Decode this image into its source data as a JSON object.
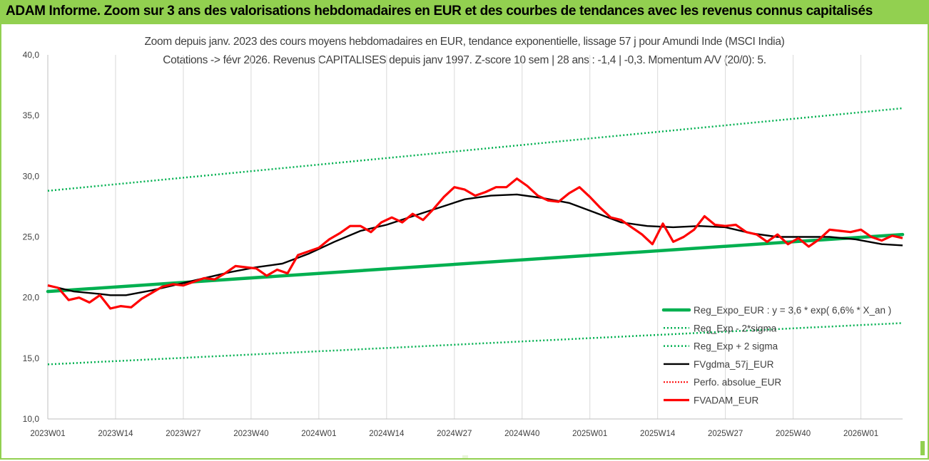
{
  "header": {
    "title": "ADAM Informe. Zoom sur 3 ans des valorisations hebdomadaires en EUR et des courbes de tendances avec les revenus connus capitalisés"
  },
  "colors": {
    "header_bg": "#92d050",
    "trend": "#00b050",
    "band": "#00b050",
    "smoothed": "#000000",
    "perf": "#ff0000",
    "price": "#ff0000"
  },
  "chart_data": {
    "type": "line",
    "title": "Zoom depuis janv. 2023 des cours moyens hebdomadaires en EUR, tendance exponentielle, lissage 57 j pour Amundi Inde (MSCI India)",
    "subtitle": "Cotations -> févr 2026. Revenus CAPITALISES depuis janv 1997. Z-score 10 sem | 28 ans : -1,4 | -0,3. Momentum A/V (20/0): 5.",
    "xlabel": "",
    "ylabel": "",
    "ylim": [
      10,
      40
    ],
    "yticks": [
      "10,0",
      "15,0",
      "20,0",
      "25,0",
      "30,0",
      "35,0",
      "40,0"
    ],
    "x_range": [
      0,
      164
    ],
    "xticks": [
      {
        "x": 0,
        "label": "2023W01"
      },
      {
        "x": 13,
        "label": "2023W14"
      },
      {
        "x": 26,
        "label": "2023W27"
      },
      {
        "x": 39,
        "label": "2023W40"
      },
      {
        "x": 52,
        "label": "2024W01"
      },
      {
        "x": 65,
        "label": "2024W14"
      },
      {
        "x": 78,
        "label": "2024W27"
      },
      {
        "x": 91,
        "label": "2024W40"
      },
      {
        "x": 104,
        "label": "2025W01"
      },
      {
        "x": 117,
        "label": "2025W14"
      },
      {
        "x": 130,
        "label": "2025W27"
      },
      {
        "x": 143,
        "label": "2025W40"
      },
      {
        "x": 156,
        "label": "2026W01"
      }
    ],
    "grid": "vertical",
    "legend_position": "bottom-right",
    "series": [
      {
        "name": "Reg_Expo_EUR : y = 3,6 * exp( 6,6% *  X_an )",
        "style": "solid-thick-green",
        "x": [
          0,
          164
        ],
        "values": [
          20.5,
          25.2
        ]
      },
      {
        "name": "Reg_Exp - 2*sigma",
        "style": "dotted-green",
        "x": [
          0,
          164
        ],
        "values": [
          14.5,
          17.9
        ]
      },
      {
        "name": "Reg_Exp + 2 sigma",
        "style": "dotted-green",
        "x": [
          0,
          164
        ],
        "values": [
          28.8,
          35.6
        ]
      },
      {
        "name": "FVgdma_57j_EUR",
        "style": "solid-black",
        "x": [
          0,
          5,
          10,
          12,
          15,
          20,
          25,
          30,
          35,
          40,
          45,
          50,
          55,
          60,
          65,
          70,
          75,
          80,
          85,
          90,
          95,
          100,
          105,
          110,
          115,
          120,
          125,
          130,
          135,
          140,
          145,
          150,
          155,
          160,
          164
        ],
        "values": [
          21.0,
          20.5,
          20.3,
          20.2,
          20.2,
          20.6,
          21.1,
          21.6,
          22.1,
          22.5,
          22.8,
          23.6,
          24.6,
          25.5,
          26.0,
          26.7,
          27.4,
          28.1,
          28.4,
          28.5,
          28.2,
          27.8,
          27.0,
          26.2,
          25.9,
          25.8,
          25.9,
          25.8,
          25.3,
          25.0,
          25.0,
          25.0,
          24.8,
          24.4,
          24.3
        ]
      },
      {
        "name": "Perfo. absolue_EUR",
        "style": "dotted-red",
        "x": [],
        "values": []
      },
      {
        "name": "FVADAM_EUR",
        "style": "solid-thick-red",
        "x": [
          0,
          2,
          4,
          6,
          8,
          10,
          12,
          14,
          16,
          18,
          20,
          22,
          24,
          26,
          28,
          30,
          32,
          34,
          36,
          38,
          40,
          42,
          44,
          46,
          48,
          50,
          52,
          54,
          56,
          58,
          60,
          62,
          64,
          66,
          68,
          70,
          72,
          74,
          76,
          78,
          80,
          82,
          84,
          86,
          88,
          90,
          92,
          94,
          96,
          98,
          100,
          102,
          104,
          106,
          108,
          110,
          112,
          114,
          116,
          118,
          120,
          122,
          124,
          126,
          128,
          130,
          132,
          134,
          136,
          138,
          140,
          142,
          144,
          146,
          148,
          150,
          152,
          154,
          156,
          158,
          160,
          162,
          164
        ],
        "values": [
          21.0,
          20.8,
          19.8,
          20.0,
          19.6,
          20.2,
          19.1,
          19.3,
          19.2,
          19.9,
          20.4,
          20.9,
          21.1,
          21.0,
          21.3,
          21.6,
          21.5,
          22.0,
          22.6,
          22.5,
          22.4,
          21.8,
          22.3,
          22.0,
          23.5,
          23.8,
          24.1,
          24.8,
          25.3,
          25.9,
          25.9,
          25.4,
          26.2,
          26.6,
          26.2,
          26.9,
          26.4,
          27.3,
          28.3,
          29.1,
          28.9,
          28.4,
          28.7,
          29.1,
          29.1,
          29.8,
          29.2,
          28.4,
          28.0,
          27.9,
          28.6,
          29.1,
          28.3,
          27.4,
          26.6,
          26.4,
          25.8,
          25.2,
          24.4,
          26.1,
          24.6,
          25.0,
          25.6,
          26.7,
          26.0,
          25.9,
          26.0,
          25.4,
          25.2,
          24.6,
          25.2,
          24.4,
          24.9,
          24.2,
          24.8,
          25.6,
          25.5,
          25.4,
          25.6,
          25.0,
          24.7,
          25.1,
          24.9
        ]
      }
    ]
  }
}
